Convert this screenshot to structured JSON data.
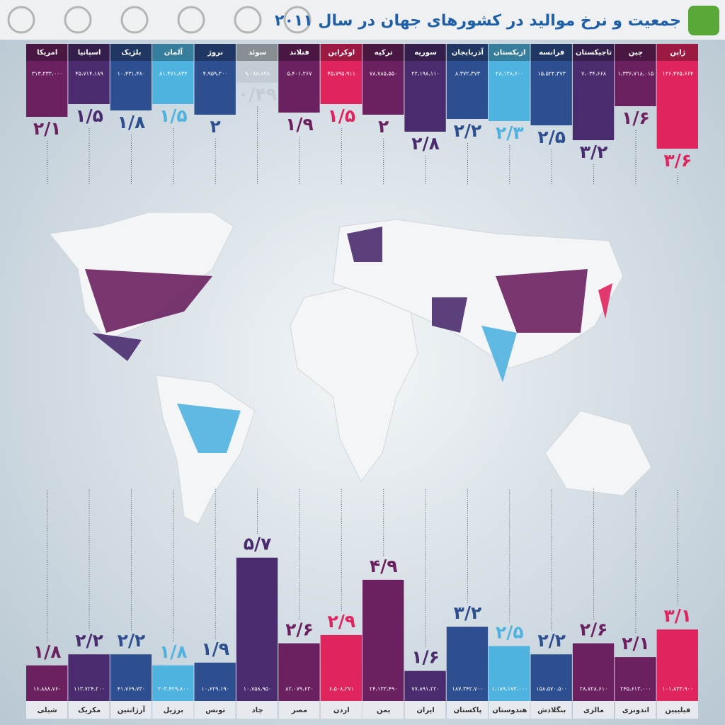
{
  "chart_data": [
    {
      "type": "bar",
      "title": "جمعیت و نرخ موالید در کشورهای جهان در سال ۲۰۱۱",
      "categories": [
        "ژاپن",
        "چین",
        "تاجیکستان",
        "فرانسه",
        "ازبکستان",
        "آذربایجان",
        "سوریه",
        "ترکیه",
        "اوکراین",
        "فنلاند",
        "سوئد",
        "نروژ",
        "آلمان",
        "بلژیک",
        "اسپانیا",
        "امریکا"
      ],
      "values": [
        3.6,
        1.6,
        3.2,
        2.5,
        2.3,
        2.2,
        2.8,
        2,
        1.5,
        1.9,
        0.49,
        2,
        1.5,
        1.8,
        1.5,
        2.1
      ],
      "value_labels": [
        "۳/۶",
        "۱/۶",
        "۳/۲",
        "۲/۵",
        "۲/۳",
        "۲/۲",
        "۲/۸",
        "۲",
        "۱/۵",
        "۱/۹",
        "۰/۴۹",
        "۲",
        "۱/۵",
        "۱/۸",
        "۱/۵",
        "۲/۱"
      ],
      "colors": [
        "#e0245e",
        "#6b2160",
        "#4a2c6e",
        "#2e4f8f",
        "#4fb3e0",
        "#2e4f8f",
        "#4a2c6e",
        "#6b2160",
        "#e0245e",
        "#6b2160",
        "#c3ccd4",
        "#2e4f8f",
        "#4fb3e0",
        "#2e4f8f",
        "#4a2c6e",
        "#6b2160"
      ],
      "population": [
        126475664,
        1336718015,
        7034668,
        15522373,
        28128600,
        8372373,
        22198110,
        78785550,
        45795911,
        5401267,
        9088728,
        4959200,
        81471834,
        10431480,
        45714189,
        313232000
      ],
      "population_labels": [
        "۱۲۶،۴۷۵،۶۶۴",
        "۱،۳۳۶،۷۱۸،۰۱۵",
        "۷،۰۳۴،۶۶۸",
        "۱۵،۵۲۲،۳۷۳",
        "۲۸،۱۲۸،۶۰۰",
        "۸،۳۷۲،۳۷۳",
        "۲۲،۱۹۸،۱۱۰",
        "۷۸،۷۸۵،۵۵۰",
        "۴۵،۷۹۵،۹۱۱",
        "۵،۴۰۱،۲۶۷",
        "۹،۰۸۸،۷۲۸",
        "۴،۹۵۹،۲۰۰",
        "۸۱،۴۷۱،۸۳۴",
        "۱۰،۴۳۱،۴۸۰",
        "۴۵،۷۱۴،۱۸۹",
        "۳۱۳،۲۳۲،۰۰۰"
      ]
    },
    {
      "type": "bar",
      "categories": [
        "فیلیپین",
        "اندونزی",
        "مالزی",
        "بنگلادش",
        "هندوستان",
        "پاکستان",
        "ایران",
        "یمن",
        "اردن",
        "مصر",
        "چاد",
        "تونس",
        "برزیل",
        "آرژانتین",
        "مکزیک",
        "شیلی"
      ],
      "values": [
        3.1,
        2.1,
        2.6,
        2.2,
        2.5,
        3.2,
        1.6,
        4.9,
        2.9,
        2.6,
        5.7,
        1.9,
        1.8,
        2.2,
        2.2,
        1.8
      ],
      "value_labels": [
        "۳/۱",
        "۲/۱",
        "۲/۶",
        "۲/۲",
        "۲/۵",
        "۳/۲",
        "۱/۶",
        "۴/۹",
        "۲/۹",
        "۲/۶",
        "۵/۷",
        "۱/۹",
        "۱/۸",
        "۲/۲",
        "۲/۲",
        "۱/۸"
      ],
      "colors": [
        "#e0245e",
        "#6b2160",
        "#6b2160",
        "#2e4f8f",
        "#4fb3e0",
        "#2e4f8f",
        "#4a2c6e",
        "#6b2160",
        "#e0245e",
        "#6b2160",
        "#4a2c6e",
        "#2e4f8f",
        "#4fb3e0",
        "#2e4f8f",
        "#4a2c6e",
        "#6b2160"
      ],
      "population": [
        101833900,
        245613000,
        28728610,
        158570500,
        1189173000,
        187342700,
        77891220,
        24133490,
        6508271,
        82079630,
        10758950,
        10629190,
        203429800,
        41769730,
        113724200,
        16888760
      ],
      "population_labels": [
        "۱۰۱،۸۳۳،۹۰۰",
        "۲۴۵،۶۱۳،۰۰۰",
        "۲۸،۷۲۸،۶۱۰",
        "۱۵۸،۵۷۰،۵۰۰",
        "۱،۱۸۹،۱۷۳،۰۰۰",
        "۱۸۷،۳۴۲،۷۰۰",
        "۷۷،۸۹۱،۲۲۰",
        "۲۴،۱۳۳،۴۹۰",
        "۶،۵۰۸،۲۷۱",
        "۸۲،۰۷۹،۶۳۰",
        "۱۰،۷۵۸،۹۵۰",
        "۱۰،۶۲۹،۱۹۰",
        "۲۰۳،۴۲۹،۸۰۰",
        "۴۱،۷۶۹،۷۳۰",
        "۱۱۳،۷۲۴،۲۰۰",
        "۱۶،۸۸۸،۷۶۰"
      ]
    }
  ]
}
